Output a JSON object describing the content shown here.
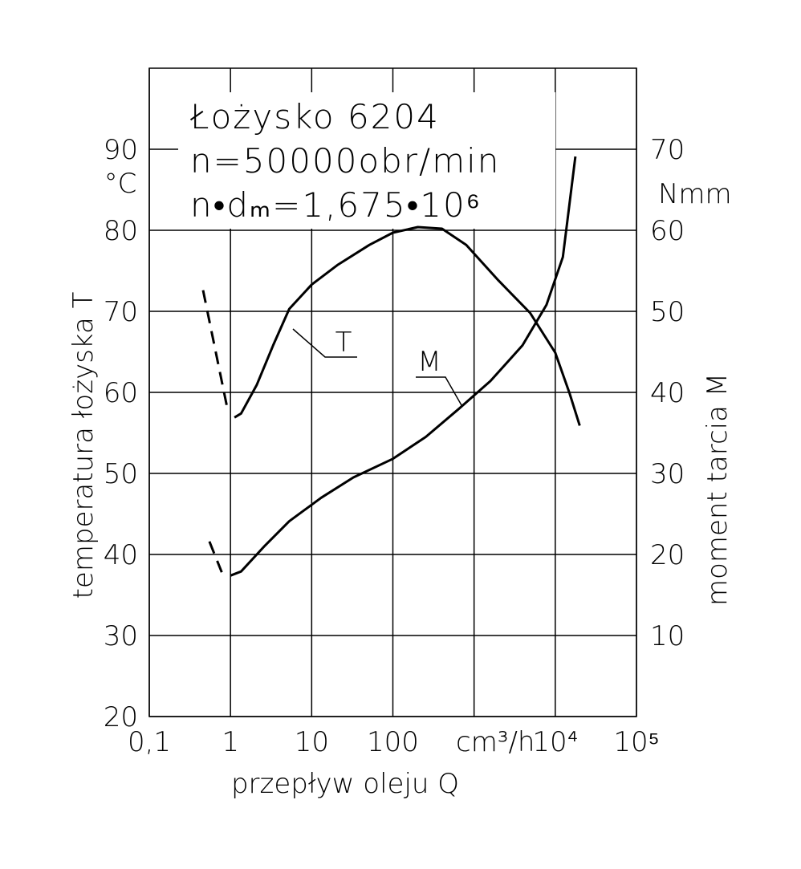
{
  "chart_data": {
    "type": "line",
    "annotations": [
      "Łożysko 6204",
      "n=50000obr/min",
      "n•dₘ=1,675•10⁶"
    ],
    "xlabel": "przepływ oleju Q",
    "x_unit": "cm³/h",
    "ylabel": "temperatura łożyska T",
    "y_unit": "°C",
    "y2label": "moment tarcia M",
    "y2_unit": "Nmm",
    "xscale": "log",
    "grid": true,
    "color": "#000000",
    "xlim": [
      0.1,
      100000
    ],
    "xticks": [
      {
        "value": 0.1,
        "label": "0,1"
      },
      1,
      10,
      100,
      {
        "value": 1000,
        "label": null
      },
      {
        "value": 10000,
        "label": "10⁴"
      },
      {
        "value": 100000,
        "label": "10⁵"
      }
    ],
    "ylim": [
      20,
      100
    ],
    "yticks": [
      20,
      30,
      40,
      50,
      60,
      70,
      80,
      90
    ],
    "y2lim": [
      0,
      80
    ],
    "y2ticks": [
      10,
      20,
      30,
      40,
      50,
      60,
      70
    ],
    "series": [
      {
        "name": "T",
        "axis": "y",
        "color": "#000000",
        "x": [
          1.12,
          1.35,
          2.1,
          3.35,
          5.3,
          10,
          20.7,
          51.5,
          100,
          203,
          403,
          800,
          2000,
          4900,
          10000,
          15000,
          20000
        ],
        "values": [
          56.9,
          57.4,
          60.9,
          65.8,
          70.3,
          73.3,
          75.7,
          78.2,
          79.7,
          80.4,
          80.2,
          78.2,
          73.8,
          69.8,
          64.9,
          59.9,
          55.9
        ],
        "dashed_x": [
          0.46,
          0.92
        ],
        "dashed_values": [
          72.6,
          57.9
        ]
      },
      {
        "name": "M",
        "axis": "y2",
        "color": "#000000",
        "x": [
          1,
          1.35,
          2.66,
          5.3,
          13.1,
          32.6,
          100,
          254,
          637,
          1590,
          3950,
          7800,
          12400,
          17700
        ],
        "values": [
          17.4,
          17.9,
          21.1,
          24.1,
          27.0,
          29.5,
          31.8,
          34.5,
          37.9,
          41.4,
          45.8,
          50.8,
          56.7,
          69.1
        ],
        "dashed_x": [
          0.55,
          0.78
        ],
        "dashed_values": [
          21.6,
          17.8
        ]
      }
    ]
  }
}
